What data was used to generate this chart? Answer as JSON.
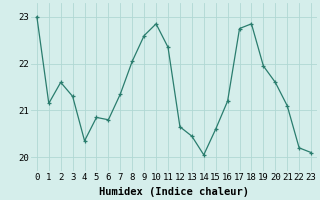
{
  "x": [
    0,
    1,
    2,
    3,
    4,
    5,
    6,
    7,
    8,
    9,
    10,
    11,
    12,
    13,
    14,
    15,
    16,
    17,
    18,
    19,
    20,
    21,
    22,
    23
  ],
  "y": [
    23.0,
    21.15,
    21.6,
    21.3,
    20.35,
    20.85,
    20.8,
    21.35,
    22.05,
    22.6,
    22.85,
    22.35,
    20.65,
    20.45,
    20.05,
    20.6,
    21.2,
    22.75,
    22.85,
    21.95,
    21.6,
    21.1,
    20.2,
    20.1
  ],
  "xlabel": "Humidex (Indice chaleur)",
  "ylim": [
    19.7,
    23.3
  ],
  "xlim": [
    -0.5,
    23.5
  ],
  "yticks": [
    20,
    21,
    22,
    23
  ],
  "xtick_labels": [
    "0",
    "1",
    "2",
    "3",
    "4",
    "5",
    "6",
    "7",
    "8",
    "9",
    "10",
    "11",
    "12",
    "13",
    "14",
    "15",
    "16",
    "17",
    "18",
    "19",
    "20",
    "21",
    "22",
    "23"
  ],
  "line_color": "#2a7d6e",
  "marker": "+",
  "bg_color": "#d5eeeb",
  "grid_color": "#b0d8d4",
  "xlabel_fontsize": 7.5,
  "tick_fontsize": 6.5
}
